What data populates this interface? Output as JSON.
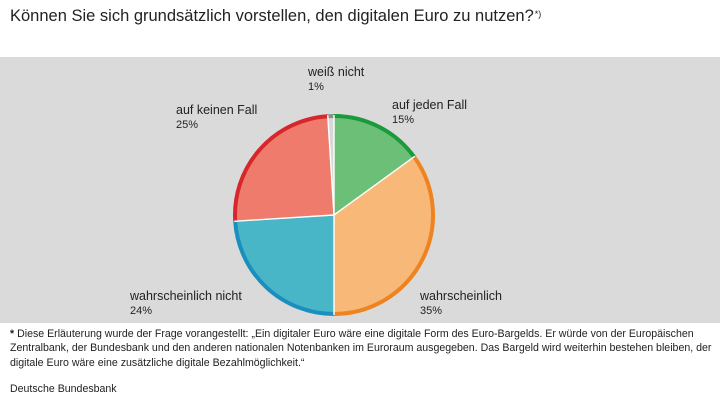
{
  "title": {
    "text": "Können Sie sich grundsätzlich vorstellen, den digitalen Euro zu nutzen?",
    "marker": "*)"
  },
  "chart_data": {
    "type": "pie",
    "slices": [
      {
        "label": "auf jeden Fall",
        "value": 15,
        "display": "15%",
        "fill": "#6cbf76",
        "stroke": "#1a9a3c"
      },
      {
        "label": "wahrscheinlich",
        "value": 35,
        "display": "35%",
        "fill": "#f8b878",
        "stroke": "#ee8420"
      },
      {
        "label": "wahrscheinlich nicht",
        "value": 24,
        "display": "24%",
        "fill": "#48b6c6",
        "stroke": "#1a8fbe"
      },
      {
        "label": "auf keinen Fall",
        "value": 25,
        "display": "25%",
        "fill": "#ee7b6c",
        "stroke": "#d8262d"
      },
      {
        "label": "weiß nicht",
        "value": 1,
        "display": "1%",
        "fill": "#d8d8d8",
        "stroke": "#8c8c8c"
      }
    ]
  },
  "footnote": {
    "marker": "*",
    "text": " Diese Erläuterung wurde der Frage vorangestellt: „Ein digitaler Euro wäre eine digitale Form des Euro-Bargelds. Er würde von der Europäischen Zentralbank, der Bundesbank und den anderen nationalen Notenbanken im Euroraum ausgegeben. Das Bargeld wird weiterhin bestehen bleiben, der digitale Euro wäre eine zusätzliche digitale Bezahlmöglichkeit.“"
  },
  "source": "Deutsche Bundesbank"
}
